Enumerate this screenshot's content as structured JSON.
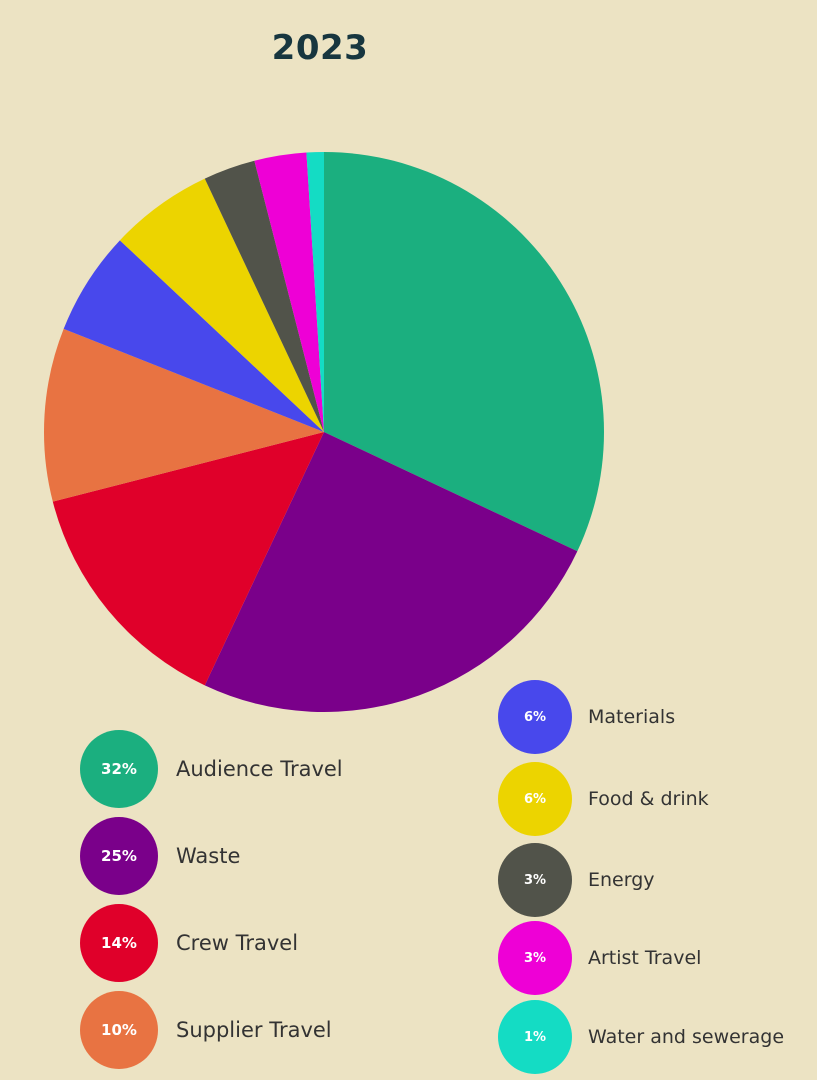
{
  "chart_data": {
    "type": "pie",
    "title": "2023",
    "slices": [
      {
        "label": "Audience Travel",
        "value": 32,
        "pct": "32%",
        "color": "#1baf7f"
      },
      {
        "label": "Waste",
        "value": 25,
        "pct": "25%",
        "color": "#7a008a"
      },
      {
        "label": "Crew Travel",
        "value": 14,
        "pct": "14%",
        "color": "#e0002a"
      },
      {
        "label": "Supplier Travel",
        "value": 10,
        "pct": "10%",
        "color": "#e87342"
      },
      {
        "label": "Materials",
        "value": 6,
        "pct": "6%",
        "color": "#4848ec"
      },
      {
        "label": "Food & drink",
        "value": 6,
        "pct": "6%",
        "color": "#ecd400"
      },
      {
        "label": "Energy",
        "value": 3,
        "pct": "3%",
        "color": "#51534a"
      },
      {
        "label": "Artist Travel",
        "value": 3,
        "pct": "3%",
        "color": "#ee00d6"
      },
      {
        "label": "Water and sewerage",
        "value": 1,
        "pct": "1%",
        "color": "#14dcc4"
      }
    ]
  }
}
